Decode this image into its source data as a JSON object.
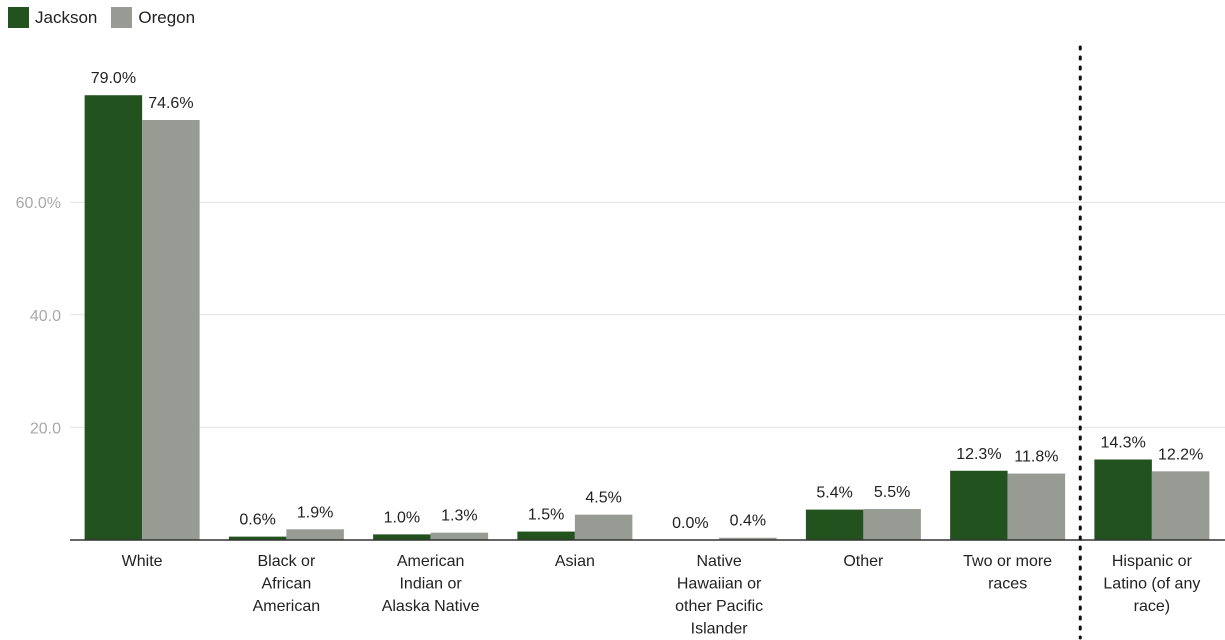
{
  "colors": {
    "jackson": "#22531f",
    "oregon": "#989a94",
    "grid": "#e2e2e2",
    "tick": "#a9a9a9"
  },
  "legend": [
    {
      "label": "Jackson",
      "color": "#22531f"
    },
    {
      "label": "Oregon",
      "color": "#989a94"
    }
  ],
  "chart_data": {
    "type": "bar",
    "categories": [
      [
        "White"
      ],
      [
        "Black or",
        "African",
        "American"
      ],
      [
        "American",
        "Indian or",
        "Alaska Native"
      ],
      [
        "Asian"
      ],
      [
        "Native",
        "Hawaiian or",
        "other Pacific",
        "Islander"
      ],
      [
        "Other"
      ],
      [
        "Two or more",
        "races"
      ],
      [
        "Hispanic or",
        "Latino (of any",
        "race)"
      ]
    ],
    "series": [
      {
        "name": "Jackson",
        "values": [
          79.0,
          0.6,
          1.0,
          1.5,
          0.0,
          5.4,
          12.3,
          14.3
        ],
        "labels": [
          "79.0%",
          "0.6%",
          "1.0%",
          "1.5%",
          "0.0%",
          "5.4%",
          "12.3%",
          "14.3%"
        ]
      },
      {
        "name": "Oregon",
        "values": [
          74.6,
          1.9,
          1.3,
          4.5,
          0.4,
          5.5,
          11.8,
          12.2
        ],
        "labels": [
          "74.6%",
          "1.9%",
          "1.3%",
          "4.5%",
          "0.4%",
          "5.5%",
          "11.8%",
          "12.2%"
        ]
      }
    ],
    "yticks": [
      20,
      40,
      60
    ],
    "ytick_labels": [
      "20.0",
      "40.0",
      "60.0%"
    ],
    "ylim": [
      0,
      90
    ],
    "grid": true,
    "legend_position": "top-left",
    "divider_before_category": 7
  }
}
